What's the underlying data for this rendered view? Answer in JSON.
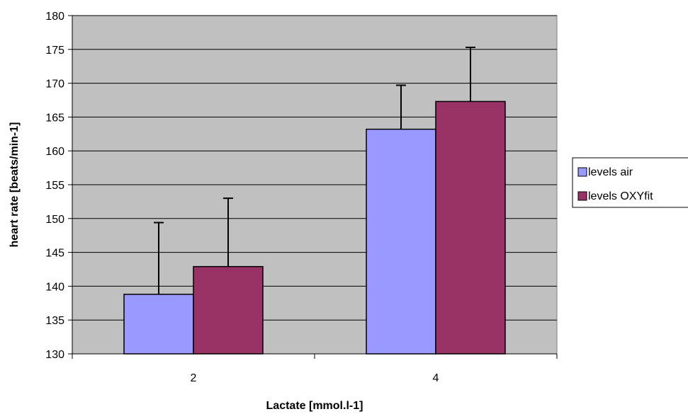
{
  "chart_data": {
    "type": "bar",
    "title": "",
    "xlabel": "Lactate [mmol.l-1]",
    "ylabel": "heart rate [beats/min-1]",
    "categories": [
      "2",
      "4"
    ],
    "ylim": [
      130,
      180
    ],
    "yticks": [
      130,
      135,
      140,
      145,
      150,
      155,
      160,
      165,
      170,
      175,
      180
    ],
    "grid": true,
    "legend_position": "right",
    "plot_background": "#c0c0c0",
    "series": [
      {
        "name": "levels air",
        "color": "#9999ff",
        "values": [
          138.8,
          163.2
        ],
        "error_upper": [
          149.4,
          169.7
        ]
      },
      {
        "name": "levels OXYfit",
        "color": "#993366",
        "values": [
          142.9,
          167.3
        ],
        "error_upper": [
          153.0,
          175.3
        ]
      }
    ]
  }
}
